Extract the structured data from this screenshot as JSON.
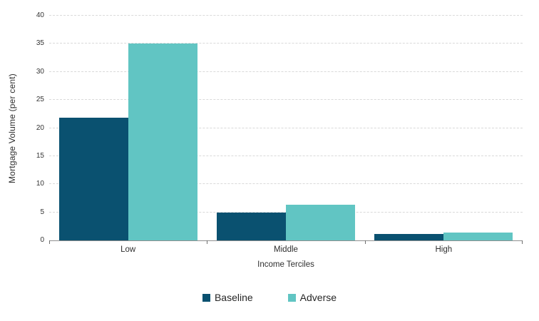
{
  "chart_data": {
    "type": "bar",
    "title": "",
    "xlabel": "Income Terciles",
    "ylabel": "Mortgage Volume (per cent)",
    "categories": [
      "Low",
      "Middle",
      "High"
    ],
    "series": [
      {
        "name": "Baseline",
        "color": "#0a5170",
        "values": [
          21.8,
          5.0,
          1.1
        ]
      },
      {
        "name": "Adverse",
        "color": "#61c5c3",
        "values": [
          35.1,
          6.4,
          1.4
        ]
      }
    ],
    "ylim": [
      0,
      40
    ],
    "yticks": [
      0,
      5,
      10,
      15,
      20,
      25,
      30,
      35,
      40
    ],
    "grid": "horizontal-dashed",
    "legend_position": "bottom"
  },
  "style": {
    "gridline_color": "#d9d9d9",
    "axis_color": "#8f8f8f",
    "tick_color": "#6f6f6f",
    "text_color": "#2e2e2e"
  }
}
